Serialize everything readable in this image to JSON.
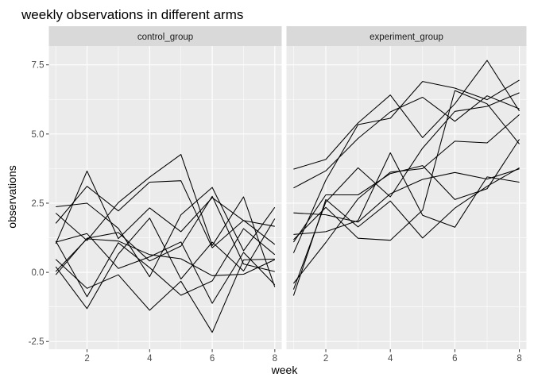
{
  "chart_data": {
    "type": "line",
    "title": "weekly observations in different arms",
    "xlabel": "week",
    "ylabel": "observations",
    "xlim": [
      0.78,
      8.22
    ],
    "ylim": [
      -2.78,
      8.18
    ],
    "x_ticks": [
      2,
      4,
      6,
      8
    ],
    "y_ticks": [
      -2.5,
      0.0,
      2.5,
      5.0,
      7.5
    ],
    "y_tick_labels": [
      "-2.5",
      "0.0",
      "2.5",
      "5.0",
      "7.5"
    ],
    "grid": true,
    "legend": "none",
    "line_color": "#000000",
    "panel_background": "#EBEBEB",
    "strip_background": "#D9D9D9",
    "grid_color": "#FFFFFF",
    "facets": [
      {
        "name": "control_group",
        "x": [
          1,
          2,
          3,
          4,
          5,
          6,
          7,
          8
        ],
        "series": [
          {
            "values": [
              0.2,
              -1.31,
              0.66,
              1.96,
              -0.24,
              1.09,
              0.05,
              1.94
            ]
          },
          {
            "values": [
              1.13,
              -0.88,
              1.07,
              0.17,
              -0.83,
              -0.31,
              1.58,
              0.64
            ]
          },
          {
            "values": [
              1.77,
              3.11,
              2.22,
              3.26,
              3.31,
              0.89,
              1.88,
              1.01
            ]
          },
          {
            "values": [
              1.04,
              3.66,
              1.22,
              2.33,
              1.47,
              2.7,
              1.87,
              1.66
            ]
          },
          {
            "values": [
              0.47,
              -0.58,
              -0.09,
              -1.37,
              -0.32,
              -2.17,
              0.45,
              0.48
            ]
          },
          {
            "values": [
              2.37,
              2.5,
              1.59,
              -0.16,
              2.08,
              3.07,
              0.78,
              2.35
            ]
          },
          {
            "values": [
              0.03,
              1.21,
              1.13,
              0.64,
              0.49,
              -0.12,
              -0.07,
              0.46
            ]
          },
          {
            "values": [
              -0.09,
              1.23,
              1.44,
              0.41,
              0.95,
              2.75,
              0.3,
              0.03
            ]
          },
          {
            "values": [
              2.14,
              1.15,
              2.52,
              3.44,
              4.26,
              0.97,
              2.73,
              -0.53
            ]
          },
          {
            "values": [
              1.09,
              1.4,
              0.14,
              0.56,
              1.1,
              -1.12,
              0.72,
              -0.45
            ]
          }
        ]
      },
      {
        "name": "experiment_group",
        "x": [
          1,
          2,
          3,
          4,
          5,
          6,
          7,
          8
        ],
        "series": [
          {
            "values": [
              3.05,
              3.67,
              4.84,
              5.8,
              6.33,
              5.46,
              6.38,
              5.91
            ]
          },
          {
            "values": [
              -0.84,
              2.63,
              1.64,
              2.58,
              1.24,
              2.32,
              3.11,
              3.78
            ]
          },
          {
            "values": [
              2.15,
              2.08,
              1.82,
              2.84,
              3.36,
              3.61,
              3.37,
              3.74
            ]
          },
          {
            "values": [
              -0.62,
              2.54,
              3.78,
              2.73,
              4.49,
              5.82,
              6.0,
              6.49
            ]
          },
          {
            "values": [
              0.7,
              3.33,
              5.34,
              5.57,
              6.9,
              6.66,
              6.24,
              6.95
            ]
          },
          {
            "values": [
              3.73,
              4.08,
              5.4,
              6.41,
              4.87,
              6.09,
              7.66,
              5.83
            ]
          },
          {
            "values": [
              1.18,
              2.35,
              1.23,
              1.16,
              2.25,
              6.57,
              6.09,
              4.64
            ]
          },
          {
            "values": [
              1.37,
              1.47,
              1.87,
              4.32,
              2.06,
              1.63,
              3.45,
              3.26
            ]
          },
          {
            "values": [
              -0.4,
              1.08,
              2.66,
              3.62,
              3.75,
              4.74,
              4.68,
              5.7
            ]
          },
          {
            "values": [
              1.09,
              2.8,
              2.8,
              3.57,
              3.86,
              2.63,
              3.02,
              4.81
            ]
          }
        ]
      }
    ]
  }
}
